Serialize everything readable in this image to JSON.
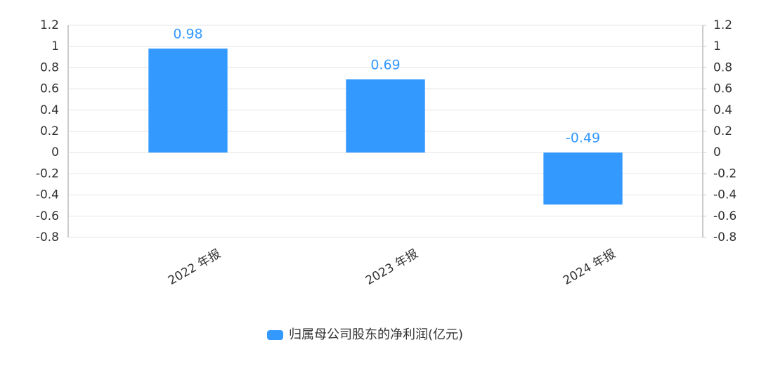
{
  "chart_data": {
    "type": "bar",
    "categories": [
      "2022 年报",
      "2023 年报",
      "2024 年报"
    ],
    "series": [
      {
        "name": "归属母公司股东的净利润(亿元)",
        "color": "#3399ff",
        "values": [
          0.98,
          0.69,
          -0.49
        ]
      }
    ],
    "ylim": [
      -0.8,
      1.2
    ],
    "yticks": [
      -0.8,
      -0.6,
      -0.4,
      -0.2,
      0,
      0.2,
      0.4,
      0.6,
      0.8,
      1,
      1.2
    ],
    "y2lim": [
      -0.8,
      1.2
    ],
    "y2ticks": [
      -0.8,
      -0.6,
      -0.4,
      -0.2,
      0,
      0.2,
      0.4,
      0.6,
      0.8,
      1,
      1.2
    ],
    "grid": true,
    "legend": "bottom"
  }
}
